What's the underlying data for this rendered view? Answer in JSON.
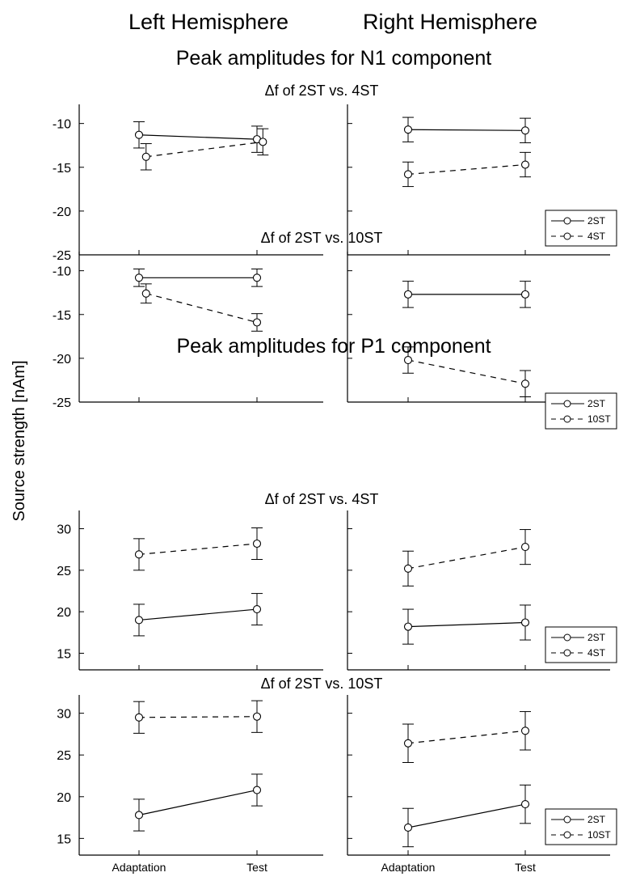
{
  "figure": {
    "hemisphere_headers": [
      "Left Hemisphere",
      "Right Hemisphere"
    ],
    "ylabel": "Source strength [nAm]",
    "sections": [
      {
        "title": "Peak amplitudes for N1 component"
      },
      {
        "title": "Peak amplitudes for P1 component"
      }
    ],
    "x_tick_labels": [
      "Adaptation",
      "Test"
    ]
  },
  "chart_data": [
    {
      "type": "line",
      "section": 0,
      "hemisphere": "left",
      "subtitle": "Δf of 2ST vs. 4ST",
      "categories": [
        "Adaptation",
        "Test"
      ],
      "ylim": [
        -25,
        -8
      ],
      "yticks": [
        -10,
        -15,
        -20,
        -25
      ],
      "legend": null,
      "series": [
        {
          "name": "2ST",
          "dash": false,
          "values": [
            -11.3,
            -11.8
          ],
          "err": [
            1.5,
            1.5
          ],
          "offset": [
            0,
            0
          ]
        },
        {
          "name": "4ST",
          "dash": true,
          "values": [
            -13.8,
            -12.1
          ],
          "err": [
            1.5,
            1.5
          ],
          "offset": [
            0.06,
            0.05
          ]
        }
      ]
    },
    {
      "type": "line",
      "section": 0,
      "hemisphere": "right",
      "subtitle": "",
      "categories": [
        "Adaptation",
        "Test"
      ],
      "ylim": [
        -25,
        -8
      ],
      "yticks": [
        -10,
        -15,
        -20,
        -25
      ],
      "legend": "right",
      "series": [
        {
          "name": "2ST",
          "dash": false,
          "values": [
            -10.7,
            -10.8
          ],
          "err": [
            1.4,
            1.4
          ],
          "offset": [
            0,
            0
          ]
        },
        {
          "name": "4ST",
          "dash": true,
          "values": [
            -15.8,
            -14.7
          ],
          "err": [
            1.4,
            1.4
          ],
          "offset": [
            0,
            0
          ]
        }
      ]
    },
    {
      "type": "line",
      "section": 0,
      "hemisphere": "left",
      "subtitle": "Δf of 2ST vs. 10ST",
      "categories": [
        "Adaptation",
        "Test"
      ],
      "ylim": [
        -25,
        -8
      ],
      "yticks": [
        -10,
        -15,
        -20,
        -25
      ],
      "legend": null,
      "series": [
        {
          "name": "2ST",
          "dash": false,
          "values": [
            -10.8,
            -10.8
          ],
          "err": [
            1.0,
            1.0
          ],
          "offset": [
            0,
            0
          ]
        },
        {
          "name": "10ST",
          "dash": true,
          "values": [
            -12.6,
            -15.9
          ],
          "err": [
            1.1,
            1.0
          ],
          "offset": [
            0.06,
            0
          ]
        }
      ]
    },
    {
      "type": "line",
      "section": 0,
      "hemisphere": "right",
      "subtitle": "",
      "categories": [
        "Adaptation",
        "Test"
      ],
      "ylim": [
        -25,
        -8
      ],
      "yticks": [
        -10,
        -15,
        -20,
        -25
      ],
      "legend": "right",
      "series": [
        {
          "name": "2ST",
          "dash": false,
          "values": [
            -12.7,
            -12.7
          ],
          "err": [
            1.5,
            1.5
          ],
          "offset": [
            0,
            0
          ]
        },
        {
          "name": "10ST",
          "dash": true,
          "values": [
            -20.2,
            -22.9
          ],
          "err": [
            1.5,
            1.5
          ],
          "offset": [
            0,
            0
          ]
        }
      ]
    },
    {
      "type": "line",
      "section": 1,
      "hemisphere": "left",
      "subtitle": "Δf of 2ST vs. 4ST",
      "categories": [
        "Adaptation",
        "Test"
      ],
      "ylim": [
        13,
        32
      ],
      "yticks": [
        30,
        25,
        20,
        15
      ],
      "legend": null,
      "series": [
        {
          "name": "2ST",
          "dash": false,
          "values": [
            19.0,
            20.3
          ],
          "err": [
            1.9,
            1.9
          ],
          "offset": [
            0,
            0
          ]
        },
        {
          "name": "4ST",
          "dash": true,
          "values": [
            26.9,
            28.2
          ],
          "err": [
            1.9,
            1.9
          ],
          "offset": [
            0,
            0
          ]
        }
      ]
    },
    {
      "type": "line",
      "section": 1,
      "hemisphere": "right",
      "subtitle": "",
      "categories": [
        "Adaptation",
        "Test"
      ],
      "ylim": [
        13,
        32
      ],
      "yticks": [
        30,
        25,
        20,
        15
      ],
      "legend": "right",
      "series": [
        {
          "name": "2ST",
          "dash": false,
          "values": [
            18.2,
            18.7
          ],
          "err": [
            2.1,
            2.1
          ],
          "offset": [
            0,
            0
          ]
        },
        {
          "name": "4ST",
          "dash": true,
          "values": [
            25.2,
            27.8
          ],
          "err": [
            2.1,
            2.1
          ],
          "offset": [
            0,
            0
          ]
        }
      ]
    },
    {
      "type": "line",
      "section": 1,
      "hemisphere": "left",
      "subtitle": "Δf of 2ST vs. 10ST",
      "categories": [
        "Adaptation",
        "Test"
      ],
      "ylim": [
        13,
        32
      ],
      "yticks": [
        30,
        25,
        20,
        15
      ],
      "legend": null,
      "series": [
        {
          "name": "2ST",
          "dash": false,
          "values": [
            17.8,
            20.8
          ],
          "err": [
            1.9,
            1.9
          ],
          "offset": [
            0,
            0
          ]
        },
        {
          "name": "10ST",
          "dash": true,
          "values": [
            29.5,
            29.6
          ],
          "err": [
            1.9,
            1.9
          ],
          "offset": [
            0,
            0
          ]
        }
      ]
    },
    {
      "type": "line",
      "section": 1,
      "hemisphere": "right",
      "subtitle": "",
      "categories": [
        "Adaptation",
        "Test"
      ],
      "ylim": [
        13,
        32
      ],
      "yticks": [
        30,
        25,
        20,
        15
      ],
      "legend": "right",
      "series": [
        {
          "name": "2ST",
          "dash": false,
          "values": [
            16.3,
            19.1
          ],
          "err": [
            2.3,
            2.3
          ],
          "offset": [
            0,
            0
          ]
        },
        {
          "name": "10ST",
          "dash": true,
          "values": [
            26.4,
            27.9
          ],
          "err": [
            2.3,
            2.3
          ],
          "offset": [
            0,
            0
          ]
        }
      ]
    }
  ]
}
